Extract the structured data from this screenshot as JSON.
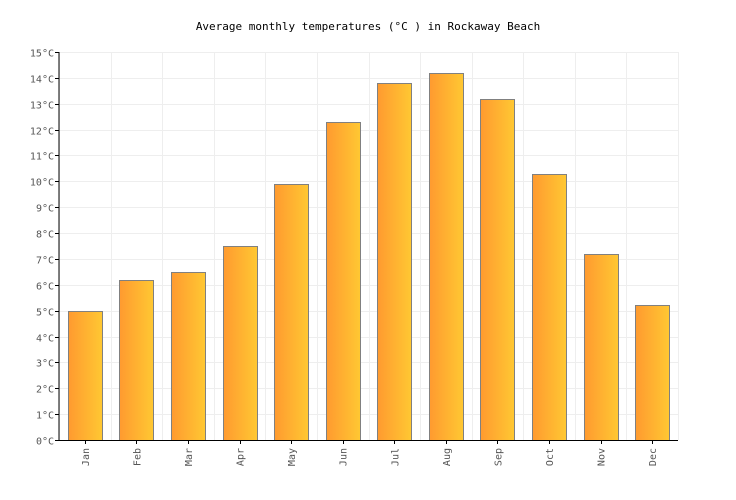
{
  "chart_data": {
    "type": "bar",
    "title": "Average monthly temperatures (°C ) in Rockaway Beach",
    "xlabel": "",
    "ylabel": "",
    "categories": [
      "Jan",
      "Feb",
      "Mar",
      "Apr",
      "May",
      "Jun",
      "Jul",
      "Aug",
      "Sep",
      "Oct",
      "Nov",
      "Dec"
    ],
    "values": [
      5.0,
      6.2,
      6.5,
      7.5,
      9.9,
      12.3,
      13.8,
      14.2,
      13.2,
      10.3,
      7.2,
      5.2
    ],
    "ylim": [
      0,
      15
    ],
    "ytick_labels": [
      "0°C",
      "1°C",
      "2°C",
      "3°C",
      "4°C",
      "5°C",
      "6°C",
      "7°C",
      "8°C",
      "9°C",
      "10°C",
      "11°C",
      "12°C",
      "13°C",
      "14°C",
      "15°C"
    ],
    "grid": true,
    "legend": "none",
    "colors": {
      "bar_left": "#ff9a30",
      "bar_right": "#ffc832",
      "bar_stroke": "#808080",
      "grid": "#eeeeee",
      "axis": "#000000"
    }
  }
}
